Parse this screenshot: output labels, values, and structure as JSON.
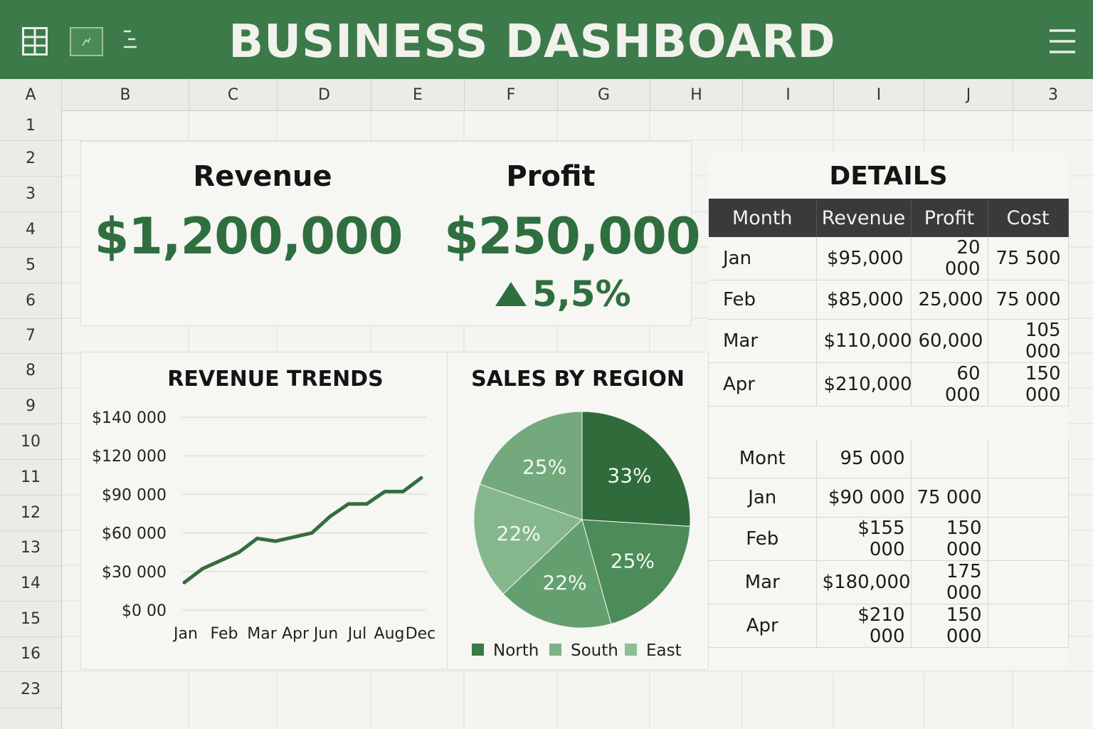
{
  "app": {
    "title": "BUSINESS DASHBOARD",
    "icons": [
      "grid-icon",
      "chart-icon",
      "list-icon",
      "menu-icon"
    ],
    "colors": {
      "brand": "#3d7a4a",
      "accent": "#2f6e3f",
      "header_dark": "#3a3a3a"
    }
  },
  "sheet": {
    "columns": [
      "A",
      "B",
      "C",
      "D",
      "E",
      "F",
      "G",
      "H",
      "I",
      "I",
      "J",
      "3"
    ],
    "rows": [
      "1",
      "2",
      "3",
      "4",
      "5",
      "6",
      "7",
      "8",
      "9",
      "10",
      "11",
      "12",
      "13",
      "14",
      "15",
      "16",
      "23"
    ]
  },
  "kpis": {
    "revenue": {
      "label": "Revenue",
      "value": "$1,200,000"
    },
    "profit": {
      "label": "Profit",
      "value": "$250,000",
      "change": "5,5%",
      "change_direction": "up"
    }
  },
  "chart_data": [
    {
      "type": "line",
      "title": "REVENUE TRENDS",
      "tick_labels_y": [
        "$140 000",
        "$120 000",
        "$90 000",
        "$60 000",
        "$30 000",
        "$0 00"
      ],
      "x_labels": [
        "Jan",
        "Feb",
        "Mar",
        "Apr",
        "Jun",
        "Jul",
        "Aug",
        "Dec"
      ],
      "ylim": [
        0,
        140000
      ],
      "series": [
        {
          "values": [
            20000,
            30000,
            36000,
            42000,
            52000,
            50000,
            53000,
            56000,
            68000,
            77000,
            77000,
            86000,
            86000,
            96000
          ]
        }
      ],
      "grid": true,
      "color": "#336e3e"
    },
    {
      "type": "pie",
      "title": "SALES BY REGION",
      "slices": [
        {
          "value": 33,
          "label": "33%",
          "color": "#2f6b3b"
        },
        {
          "value": 25,
          "label": "25%",
          "color": "#4c8c59"
        },
        {
          "value": 22,
          "label": "22%",
          "color": "#64a06f"
        },
        {
          "value": 22,
          "label": "22%",
          "color": "#85b78d"
        },
        {
          "value": 25,
          "label": "25%",
          "color": "#73a97c"
        }
      ],
      "legend": [
        {
          "name": "North",
          "color": "#3b7a48"
        },
        {
          "name": "South",
          "color": "#7cb386"
        },
        {
          "name": "East",
          "color": "#8ebd95"
        }
      ],
      "legend_position": "bottom"
    }
  ],
  "details": {
    "title": "DETAILS",
    "headers": [
      "Month",
      "Revenue",
      "Profit",
      "Cost"
    ],
    "rows": [
      [
        "Jan",
        "$95,000",
        "20 000",
        "75 500"
      ],
      [
        "Feb",
        "$85,000",
        "25,000",
        "75 000"
      ],
      [
        "Mar",
        "$110,000",
        "60,000",
        "105 000"
      ],
      [
        "Apr",
        "$210,000",
        "60 000",
        "150 000"
      ]
    ]
  },
  "summary": {
    "header": [
      "Mont",
      "95 000",
      ""
    ],
    "rows": [
      [
        "Jan",
        "$90 000",
        "75 000"
      ],
      [
        "Feb",
        "$155 000",
        "150 000"
      ],
      [
        "Mar",
        "$180,000",
        "175 000"
      ],
      [
        "Apr",
        "$210 000",
        "150 000"
      ]
    ]
  }
}
